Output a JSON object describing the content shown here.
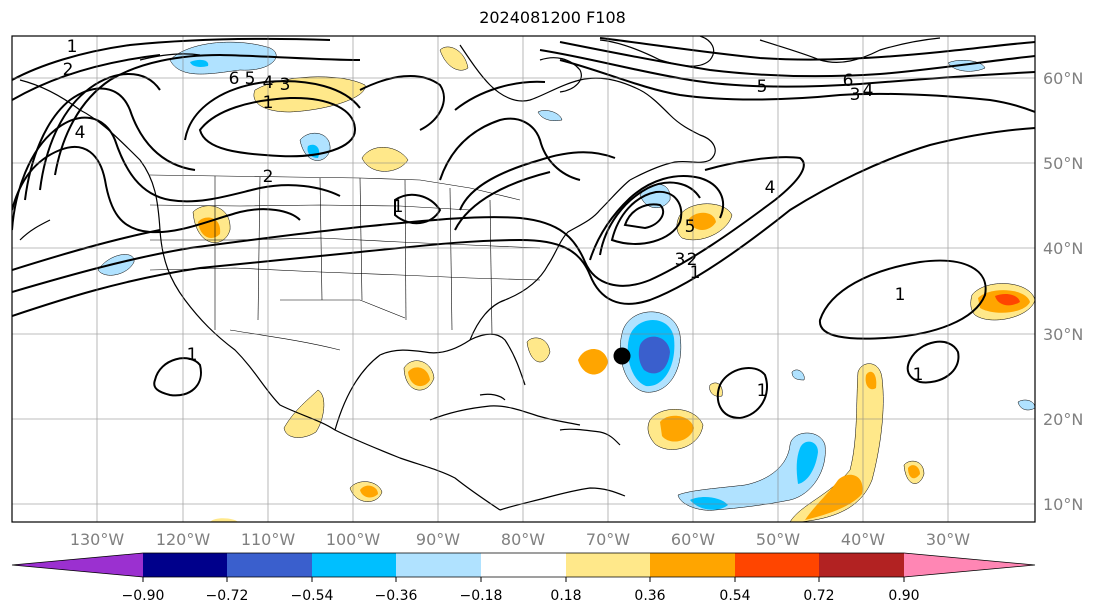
{
  "title": "2024081200 F108",
  "map": {
    "lon_ticks": [
      "130°W",
      "120°W",
      "110°W",
      "100°W",
      "90°W",
      "80°W",
      "70°W",
      "60°W",
      "50°W",
      "40°W",
      "30°W"
    ],
    "lat_ticks": [
      "60°N",
      "50°N",
      "40°N",
      "30°N",
      "20°N",
      "10°N"
    ],
    "contour_labels": [
      "1",
      "2",
      "6",
      "5",
      "4",
      "3",
      "1",
      "2",
      "4",
      "1",
      "5",
      "3",
      "2",
      "1",
      "6",
      "4",
      "3",
      "5",
      "1",
      "1",
      "1",
      "1",
      "4"
    ],
    "marker": {
      "name": "storm-position",
      "lon": -68.5,
      "lat": 27.5,
      "color": "#000000"
    }
  },
  "colorbar": {
    "ticks": [
      "−0.90",
      "−0.72",
      "−0.54",
      "−0.36",
      "−0.18",
      "0.18",
      "0.36",
      "0.54",
      "0.72",
      "0.90"
    ],
    "colors": [
      "#9b30d0",
      "#00008b",
      "#3a5fcd",
      "#00bfff",
      "#b0e2ff",
      "#ffffff",
      "#ffe88a",
      "#ffa500",
      "#ff4500",
      "#b22222",
      "#ff86b4"
    ]
  }
}
